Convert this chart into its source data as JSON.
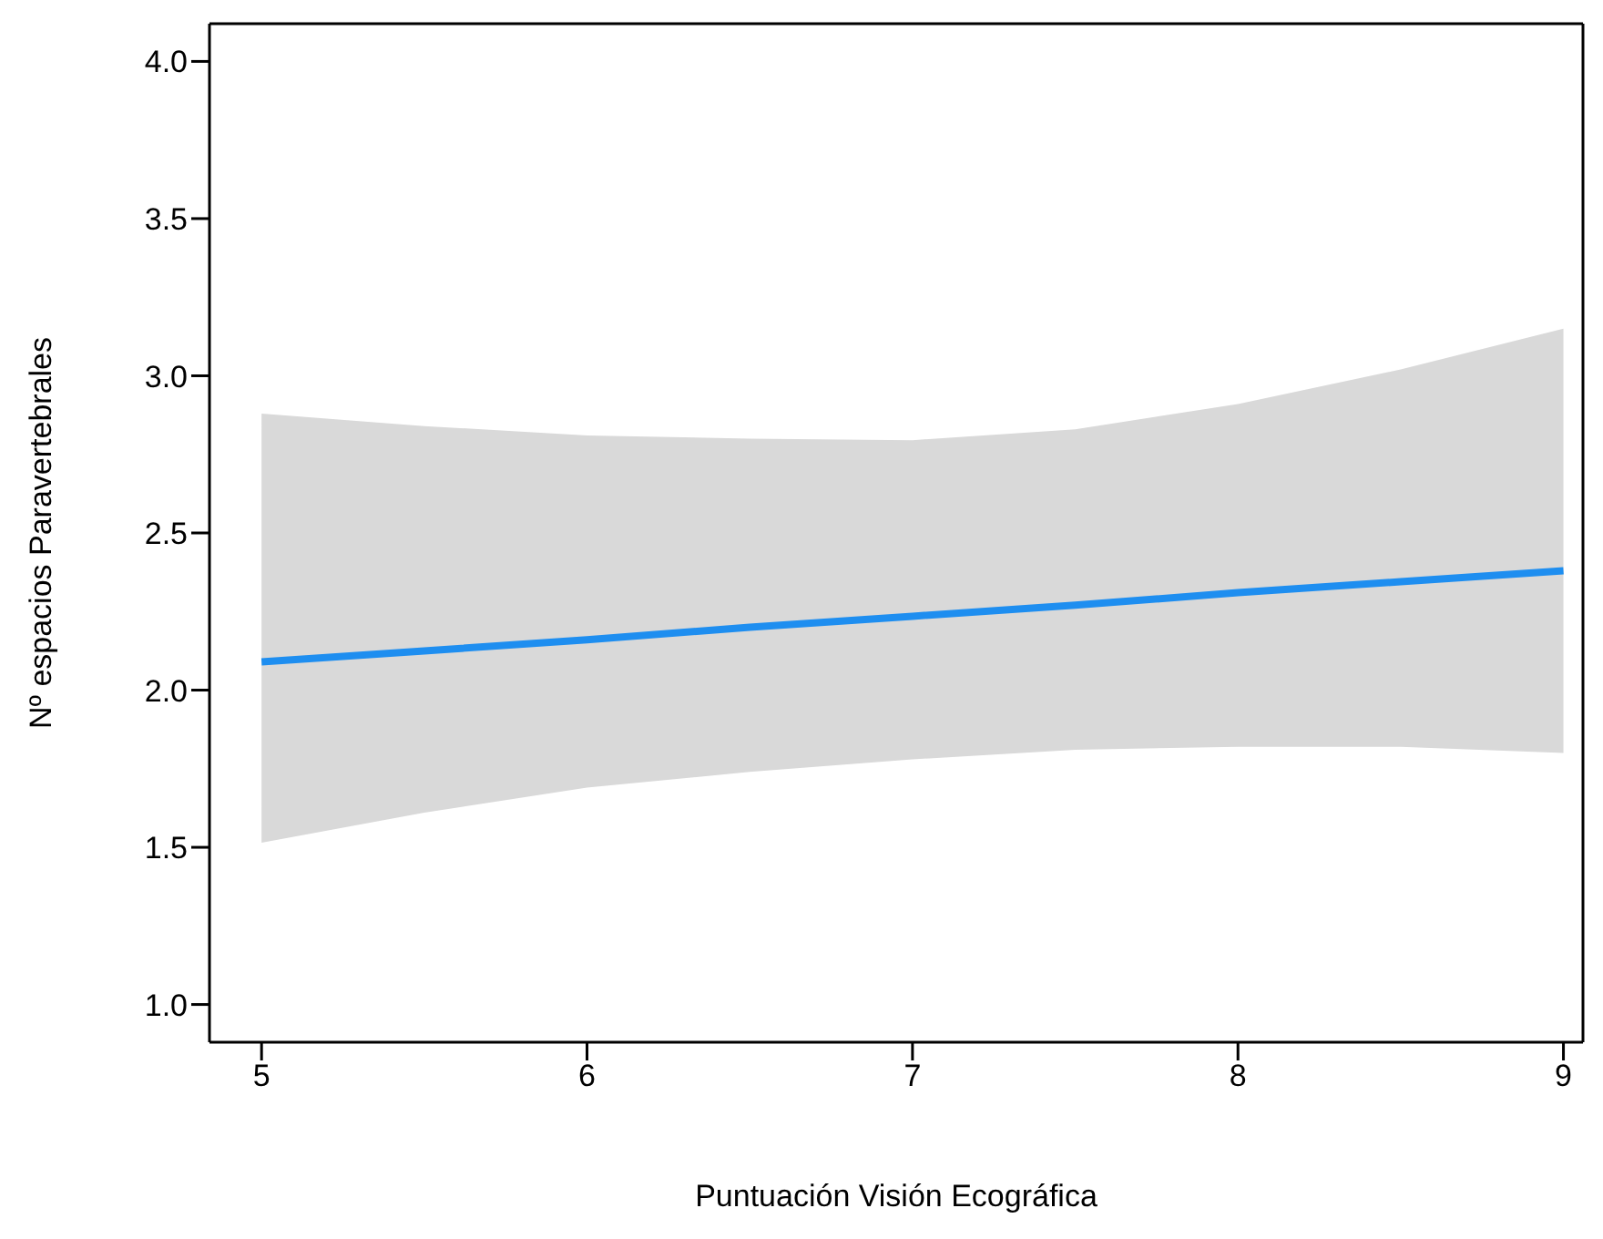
{
  "chart_data": {
    "type": "line",
    "xlabel": "Puntuación Visión Ecográfica",
    "ylabel": "Nº espacios Paravertebrales",
    "x": [
      5,
      5.5,
      6,
      6.5,
      7,
      7.5,
      8,
      8.5,
      9
    ],
    "series": [
      {
        "color": "#1e8ef0",
        "values": [
          2.09,
          2.125,
          2.16,
          2.2,
          2.235,
          2.27,
          2.31,
          2.345,
          2.38
        ],
        "lower": [
          1.515,
          1.61,
          1.69,
          1.74,
          1.78,
          1.81,
          1.82,
          1.82,
          1.8
        ],
        "upper": [
          2.88,
          2.84,
          2.81,
          2.8,
          2.795,
          2.83,
          2.91,
          3.02,
          3.15
        ]
      }
    ],
    "xlim": [
      4.84,
      9.06
    ],
    "xticks": [
      5,
      6,
      7,
      8,
      9
    ],
    "ylim": [
      0.88,
      4.12
    ],
    "yticks": [
      {
        "value": 1,
        "label": "1.0"
      },
      {
        "value": 1.5,
        "label": "1.5"
      },
      {
        "value": 2,
        "label": "2.0"
      },
      {
        "value": 2.5,
        "label": "2.5"
      },
      {
        "value": 3,
        "label": "3.0"
      },
      {
        "value": 3.5,
        "label": "3.5"
      },
      {
        "value": 4,
        "label": "4.0"
      }
    ],
    "grid": false,
    "legend": false,
    "marker": "none",
    "line_style": "solid"
  }
}
